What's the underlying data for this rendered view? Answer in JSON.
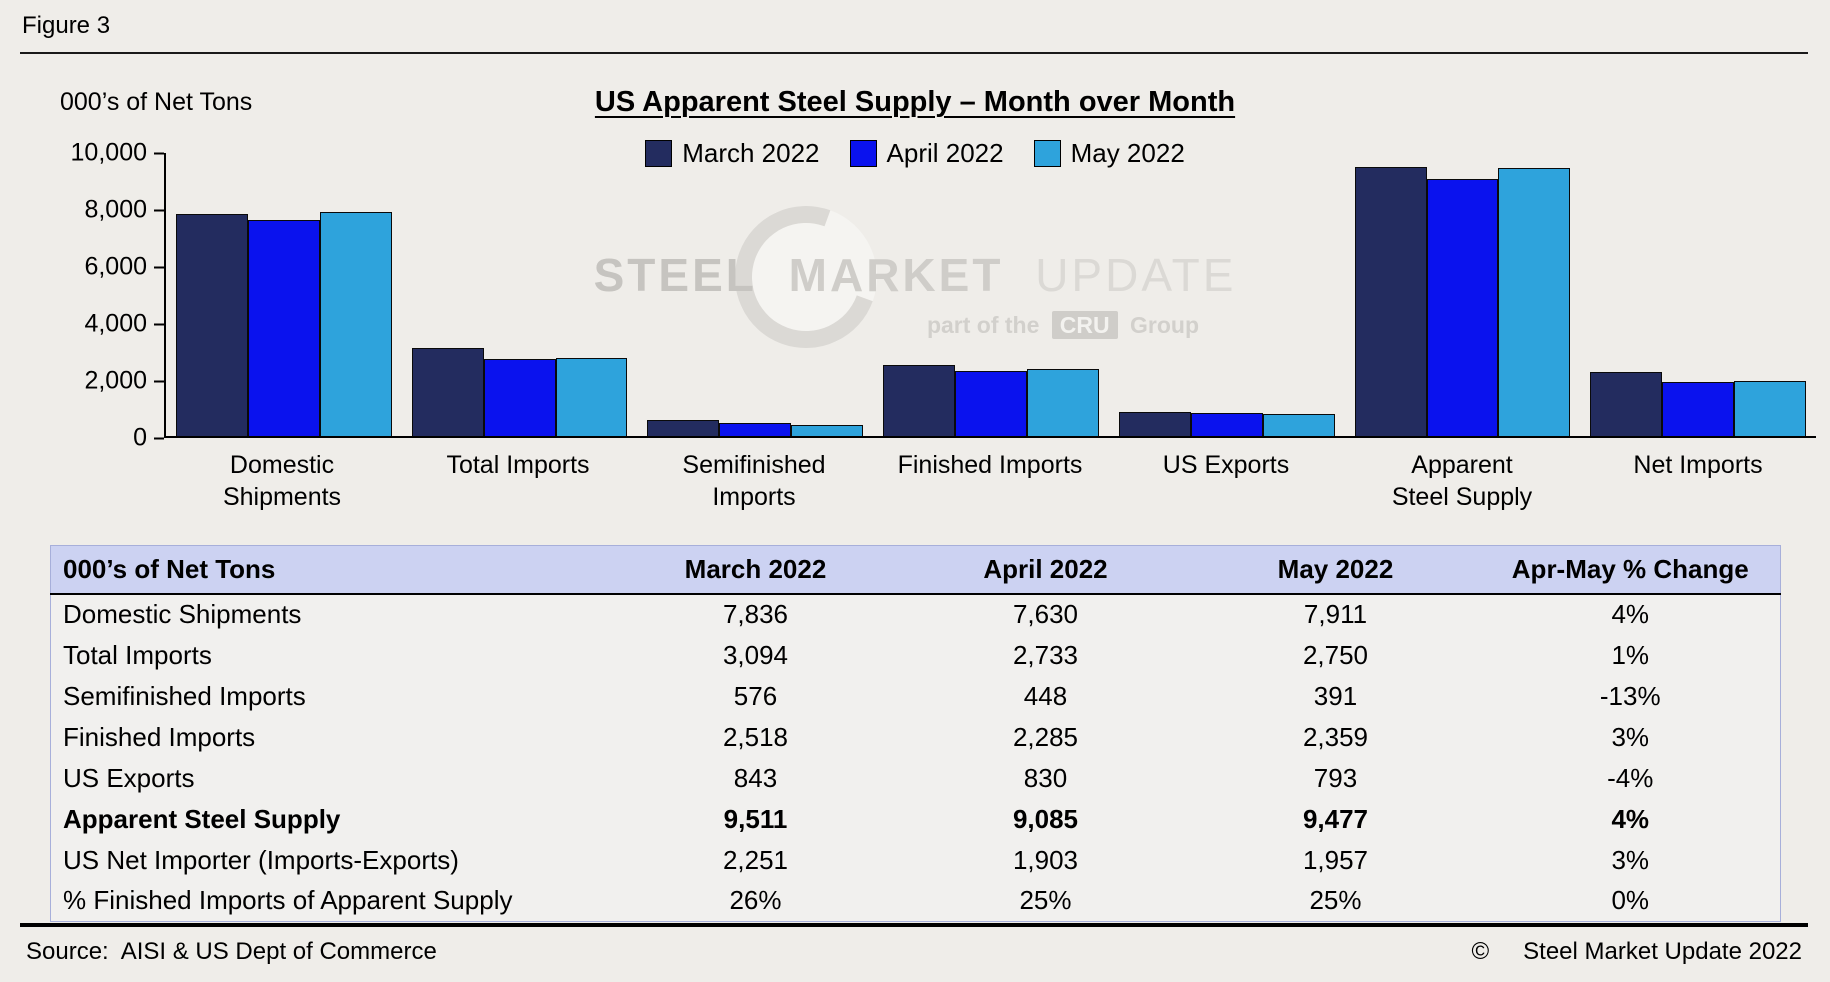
{
  "figure_label": "Figure 3",
  "chart_data": {
    "type": "bar",
    "title": "US Apparent Steel Supply – Month over Month",
    "ylabel": "000’s of Net Tons",
    "xlabel": "",
    "ylim": [
      0,
      10000
    ],
    "grid": false,
    "legend_position": "top-center",
    "yticks": [
      {
        "value": 0,
        "label": "0"
      },
      {
        "value": 2000,
        "label": "2,000"
      },
      {
        "value": 4000,
        "label": "4,000"
      },
      {
        "value": 6000,
        "label": "6,000"
      },
      {
        "value": 8000,
        "label": "8,000"
      },
      {
        "value": 10000,
        "label": "10,000"
      }
    ],
    "categories": [
      "Domestic Shipments",
      "Total Imports",
      "Semifinished Imports",
      "Finished Imports",
      "US Exports",
      "Apparent Steel Supply",
      "Net Imports"
    ],
    "category_label_lines": [
      [
        "Domestic",
        "Shipments"
      ],
      [
        "Total Imports"
      ],
      [
        "Semifinished",
        "Imports"
      ],
      [
        "Finished Imports"
      ],
      [
        "US Exports"
      ],
      [
        "Apparent",
        "Steel Supply"
      ],
      [
        "Net Imports"
      ]
    ],
    "series": [
      {
        "name": "March 2022",
        "color": "#232C5F",
        "values": [
          7836,
          3094,
          576,
          2518,
          843,
          9511,
          2251
        ]
      },
      {
        "name": "April 2022",
        "color": "#0A12EE",
        "values": [
          7630,
          2733,
          448,
          2285,
          830,
          9085,
          1903
        ]
      },
      {
        "name": "May 2022",
        "color": "#2EA3DC",
        "values": [
          7911,
          2750,
          391,
          2359,
          793,
          9477,
          1957
        ]
      }
    ]
  },
  "watermark": {
    "line1_parts": [
      "STEEL",
      "MARKET",
      "UPDATE"
    ],
    "line2_prefix": "part of the",
    "line2_box": "CRU",
    "line2_suffix": "Group"
  },
  "table": {
    "headers": [
      "000’s of Net Tons",
      "March 2022",
      "April 2022",
      "May 2022",
      "Apr-May % Change"
    ],
    "rows": [
      {
        "label": "Domestic Shipments",
        "values": [
          "7,836",
          "7,630",
          "7,911",
          "4%"
        ],
        "bold": false
      },
      {
        "label": "Total Imports",
        "values": [
          "3,094",
          "2,733",
          "2,750",
          "1%"
        ],
        "bold": false
      },
      {
        "label": "Semifinished Imports",
        "values": [
          "576",
          "448",
          "391",
          "-13%"
        ],
        "bold": false
      },
      {
        "label": "Finished Imports",
        "values": [
          "2,518",
          "2,285",
          "2,359",
          "3%"
        ],
        "bold": false
      },
      {
        "label": "US Exports",
        "values": [
          "843",
          "830",
          "793",
          "-4%"
        ],
        "bold": false
      },
      {
        "label": "Apparent Steel Supply",
        "values": [
          "9,511",
          "9,085",
          "9,477",
          "4%"
        ],
        "bold": true
      },
      {
        "label": "US Net Importer (Imports-Exports)",
        "values": [
          "2,251",
          "1,903",
          "1,957",
          "3%"
        ],
        "bold": false
      },
      {
        "label": "% Finished Imports of Apparent Supply",
        "values": [
          "26%",
          "25%",
          "25%",
          "0%"
        ],
        "bold": false
      }
    ]
  },
  "footer": {
    "source": "Source:  AISI & US Dept of Commerce",
    "copyright_symbol": "©",
    "copyright_text": "Steel Market Update 2022"
  }
}
